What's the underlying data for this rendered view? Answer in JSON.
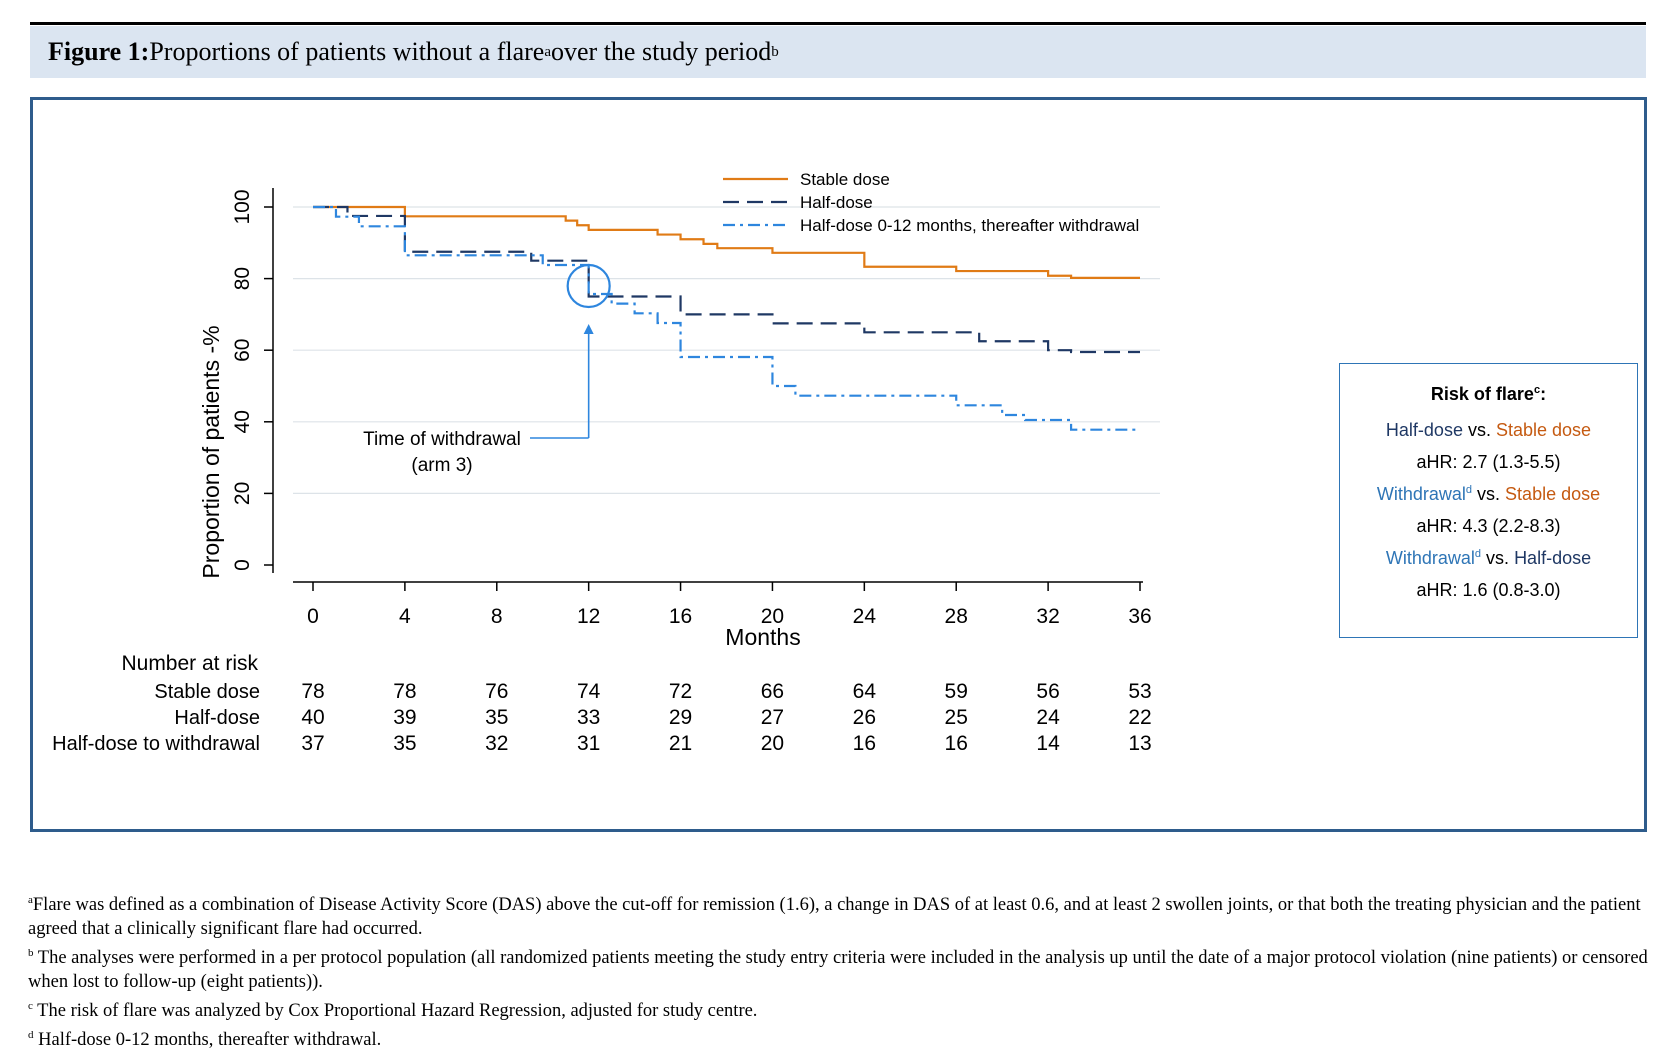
{
  "header": {
    "figure_label": "Figure 1:",
    "title_text": " Proportions of patients without a flare",
    "title_sup_a": "a",
    "title_text2": " over the study period",
    "title_sup_b": "b"
  },
  "risk_box": {
    "title": "Risk of flare",
    "title_sup": "c",
    "title_colon": ":",
    "vs": " vs. ",
    "comparisons": [
      {
        "left": "Half-dose",
        "left_sup": "",
        "left_color": "#1f3864",
        "right": "Stable dose",
        "right_color": "#c55a11",
        "ahr": "aHR: 2.7 (1.3-5.5)"
      },
      {
        "left": "Withdrawal",
        "left_sup": "d",
        "left_color": "#2e75b6",
        "right": "Stable dose",
        "right_color": "#c55a11",
        "ahr": "aHR: 4.3 (2.2-8.3)"
      },
      {
        "left": "Withdrawal",
        "left_sup": "d",
        "left_color": "#2e75b6",
        "right": "Half-dose",
        "right_color": "#1f3864",
        "ahr": "aHR: 1.6 (0.8-3.0)"
      }
    ]
  },
  "footnotes": [
    {
      "sup": "a",
      "text": "Flare was defined as a combination of Disease Activity Score (DAS) above the cut-off for remission (1.6), a change in DAS of at least 0.6, and at least 2 swollen joints, or that both the treating physician and the patient agreed that a clinically significant flare had occurred."
    },
    {
      "sup": "b",
      "text": " The analyses were performed in a per protocol population (all randomized patients meeting the study entry criteria were included in the analysis up until the date of a major protocol violation (nine patients) or censored when lost to follow-up (eight patients))."
    },
    {
      "sup": "c",
      "text": " The risk of flare was analyzed by Cox Proportional Hazard Regression, adjusted for study centre."
    },
    {
      "sup": "d",
      "text": " Half-dose 0-12 months, thereafter withdrawal."
    }
  ],
  "chart_data": {
    "type": "line",
    "xlabel": "Months",
    "ylabel": "Proportion of patients -%",
    "xlim": [
      0,
      36
    ],
    "ylim": [
      0,
      100
    ],
    "x_ticks": [
      0,
      4,
      8,
      12,
      16,
      20,
      24,
      28,
      32,
      36
    ],
    "y_ticks": [
      0,
      20,
      40,
      60,
      80,
      100
    ],
    "grid": true,
    "legend_position": "top-right",
    "step": true,
    "series": [
      {
        "name": "Stable dose",
        "color": "#e07b16",
        "dash": "solid",
        "x": [
          0,
          4,
          11,
          11.5,
          12,
          13,
          15,
          16,
          17,
          17.6,
          18,
          20,
          22,
          24,
          26,
          28,
          30,
          32,
          33,
          34,
          36
        ],
        "y": [
          100,
          97.4,
          96.2,
          94.9,
          93.6,
          93.6,
          92.3,
          91,
          89.7,
          88.5,
          88.5,
          87.2,
          87.2,
          83.3,
          83.3,
          82.1,
          82.1,
          80.8,
          80.2,
          80.2,
          80.2
        ]
      },
      {
        "name": "Half-dose",
        "color": "#1f3864",
        "dash": "long-dash",
        "x": [
          0,
          1.5,
          4,
          8,
          9.5,
          12,
          13,
          15,
          16,
          20,
          22,
          24,
          28,
          29,
          31,
          32,
          33,
          36
        ],
        "y": [
          100,
          97.5,
          87.5,
          87.5,
          85,
          75,
          75,
          75,
          70,
          67.5,
          67.5,
          65,
          65,
          62.5,
          62.5,
          60,
          59.5,
          59.5
        ]
      },
      {
        "name": "Half-dose 0-12 months, thereafter withdrawal",
        "color": "#2e86de",
        "dash": "dash-dot",
        "x": [
          0,
          1,
          2,
          4,
          8,
          9,
          10,
          11,
          12,
          13,
          14,
          15,
          16,
          17,
          19,
          20,
          21,
          22,
          26,
          28,
          29,
          30,
          31,
          32,
          33,
          35,
          36
        ],
        "y": [
          100,
          97.3,
          94.6,
          86.5,
          86.5,
          86.5,
          83.8,
          83.8,
          75.7,
          73,
          70.3,
          67.6,
          58.1,
          58.1,
          58.1,
          50,
          47.3,
          47.3,
          47.3,
          44.6,
          44.6,
          41.9,
          40.5,
          40.5,
          37.8,
          37.8,
          37.8
        ]
      }
    ],
    "annotation": {
      "text_line1": "Time of withdrawal",
      "text_line2": "(arm 3)",
      "x": 12
    },
    "number_at_risk": {
      "title": "Number at risk",
      "rows": [
        {
          "label": "Stable dose",
          "values": [
            78,
            78,
            76,
            74,
            72,
            66,
            64,
            59,
            56,
            53
          ]
        },
        {
          "label": "Half-dose",
          "values": [
            40,
            39,
            35,
            33,
            29,
            27,
            26,
            25,
            24,
            22
          ]
        },
        {
          "label": "Half-dose to withdrawal",
          "values": [
            37,
            35,
            32,
            31,
            21,
            20,
            16,
            16,
            14,
            13
          ]
        }
      ]
    }
  }
}
